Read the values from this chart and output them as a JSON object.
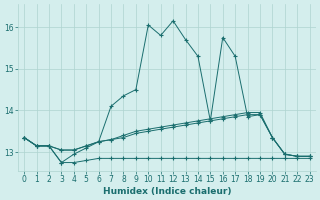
{
  "xlabel": "Humidex (Indice chaleur)",
  "bg_color": "#d4eeed",
  "grid_color": "#aed4d0",
  "line_color": "#1a6e6e",
  "xlim": [
    -0.5,
    23.5
  ],
  "ylim": [
    12.55,
    16.55
  ],
  "yticks": [
    13,
    14,
    15,
    16
  ],
  "xticks": [
    0,
    1,
    2,
    3,
    4,
    5,
    6,
    7,
    8,
    9,
    10,
    11,
    12,
    13,
    14,
    15,
    16,
    17,
    18,
    19,
    20,
    21,
    22,
    23
  ],
  "line1_x": [
    0,
    1,
    2,
    3,
    4,
    5,
    6,
    7,
    8,
    9,
    10,
    11,
    12,
    13,
    14,
    15,
    16,
    17,
    18,
    19,
    20,
    21,
    22,
    23
  ],
  "line1_y": [
    13.35,
    13.15,
    13.15,
    12.75,
    12.75,
    12.8,
    12.85,
    12.85,
    12.85,
    12.85,
    12.85,
    12.85,
    12.85,
    12.85,
    12.85,
    12.85,
    12.85,
    12.85,
    12.85,
    12.85,
    12.85,
    12.85,
    12.85,
    12.85
  ],
  "line2_x": [
    0,
    1,
    2,
    3,
    4,
    5,
    6,
    7,
    8,
    9,
    10,
    11,
    12,
    13,
    14,
    15,
    16,
    17,
    18,
    19,
    20,
    21,
    22,
    23
  ],
  "line2_y": [
    13.35,
    13.15,
    13.15,
    13.05,
    13.05,
    13.15,
    13.25,
    13.3,
    13.35,
    13.45,
    13.5,
    13.55,
    13.6,
    13.65,
    13.7,
    13.75,
    13.8,
    13.85,
    13.9,
    13.9,
    13.35,
    12.95,
    12.9,
    12.9
  ],
  "line3_x": [
    0,
    1,
    2,
    3,
    4,
    5,
    6,
    7,
    8,
    9,
    10,
    11,
    12,
    13,
    14,
    15,
    16,
    17,
    18,
    19,
    20,
    21,
    22,
    23
  ],
  "line3_y": [
    13.35,
    13.15,
    13.15,
    13.05,
    13.05,
    13.15,
    13.25,
    13.3,
    13.4,
    13.5,
    13.55,
    13.6,
    13.65,
    13.7,
    13.75,
    13.8,
    13.85,
    13.9,
    13.95,
    13.95,
    13.35,
    12.95,
    12.9,
    12.9
  ],
  "line4_x": [
    0,
    1,
    2,
    3,
    4,
    5,
    6,
    7,
    8,
    9,
    10,
    11,
    12,
    13,
    14,
    15,
    16,
    17,
    18,
    19,
    20,
    21,
    22,
    23
  ],
  "line4_y": [
    13.35,
    13.15,
    13.15,
    12.75,
    12.95,
    13.1,
    13.25,
    14.1,
    14.35,
    14.5,
    16.05,
    15.8,
    16.15,
    15.7,
    15.3,
    13.75,
    15.75,
    15.3,
    13.85,
    13.9,
    13.35,
    12.95,
    12.9,
    12.9
  ]
}
